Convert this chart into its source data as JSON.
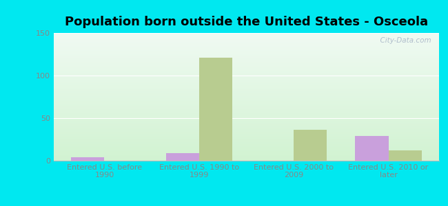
{
  "title": "Population born outside the United States - Osceola",
  "categories": [
    "Entered U.S. before\n1990",
    "Entered U.S. 1990 to\n1999",
    "Entered U.S. 2000 to\n2009",
    "Entered U.S. 2010 or\nlater"
  ],
  "native_values": [
    4,
    9,
    0,
    29
  ],
  "foreign_born_values": [
    0,
    121,
    36,
    12
  ],
  "native_color": "#c9a0dc",
  "foreign_born_color": "#b8cc90",
  "ylim": [
    0,
    150
  ],
  "yticks": [
    0,
    50,
    100,
    150
  ],
  "outer_color": "#00e8f0",
  "watermark": "  City-Data.com",
  "bar_width": 0.35,
  "title_fontsize": 13,
  "tick_fontsize": 8,
  "legend_fontsize": 9,
  "tick_color": "#888888",
  "legend_text_color": "#00ccdd"
}
